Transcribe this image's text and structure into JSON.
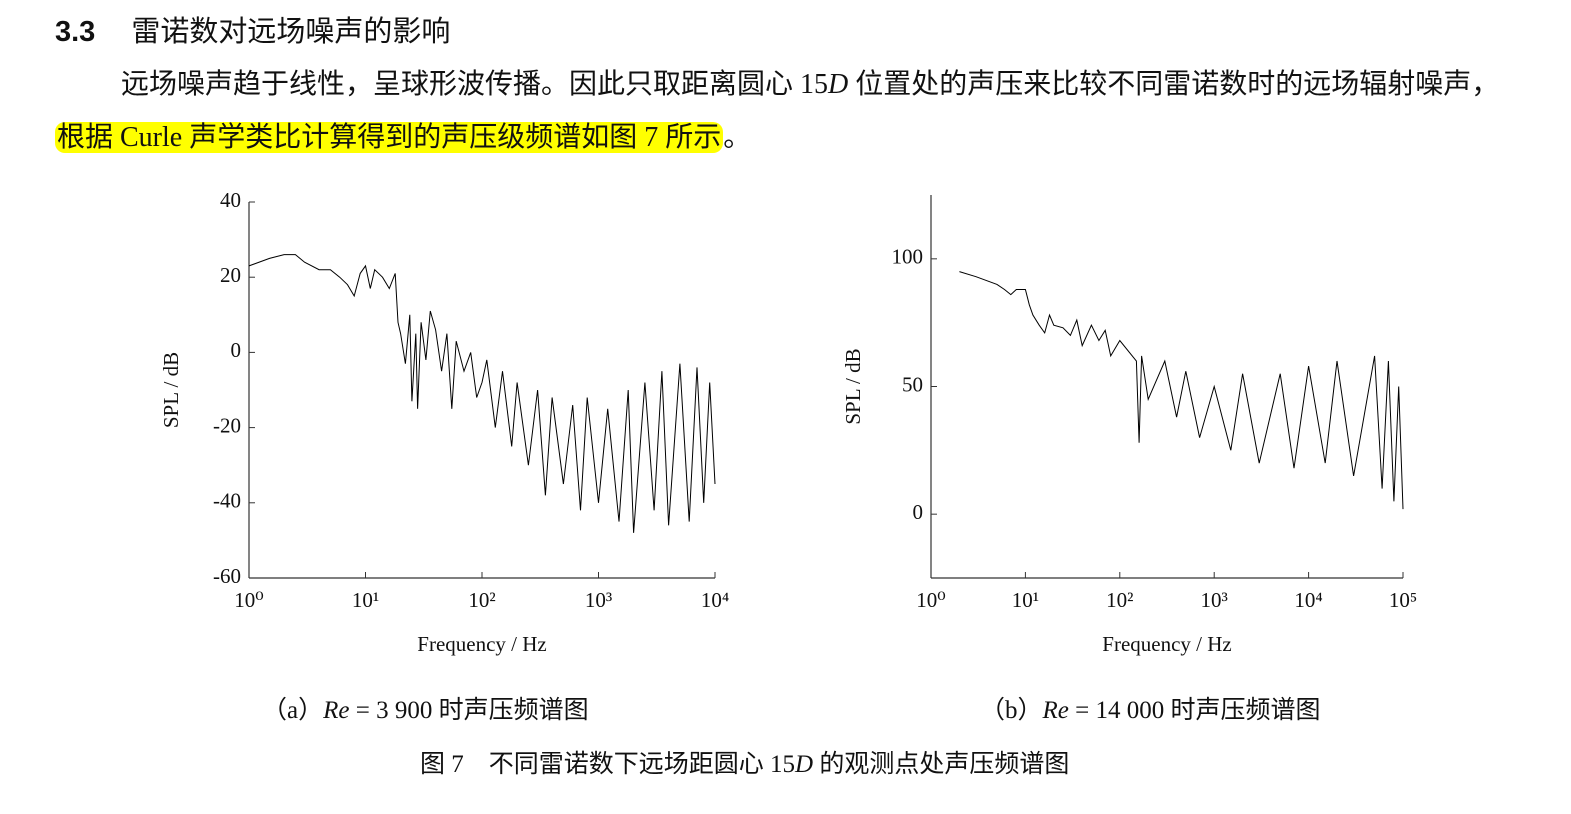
{
  "section": {
    "number": "3.3",
    "title": "雷诺数对远场噪声的影响"
  },
  "paragraph": {
    "before": "远场噪声趋于线性，呈球形波传播。因此只取距离圆心 15",
    "italic": "D",
    "middle": " 位置处的声压来比较不同雷诺数时的远场辐射噪声，",
    "highlight": "根据 Curle 声学类比计算得到的声压级频谱如图 7 所示",
    "after": "。"
  },
  "subcaptions": [
    {
      "label": "（a）",
      "italic": "Re",
      "text": " = 3 900 时声压频谱图"
    },
    {
      "label": "（b）",
      "italic": "Re",
      "text": " = 14 000 时声压频谱图"
    }
  ],
  "caption": {
    "before": "图 7　不同雷诺数下远场距圆心 15",
    "italic": "D",
    "after": " 的观测点处声压频谱图"
  },
  "chart_data": [
    {
      "type": "line",
      "x_label": "Frequency / Hz",
      "y_label": "SPL / dB",
      "log_x": true,
      "color": "#000000",
      "xlim": [
        1,
        10000
      ],
      "xticks": [
        {
          "value": 1,
          "label": "10⁰"
        },
        {
          "value": 10,
          "label": "10¹"
        },
        {
          "value": 100,
          "label": "10²"
        },
        {
          "value": 1000,
          "label": "10³"
        },
        {
          "value": 10000,
          "label": "10⁴"
        }
      ],
      "ylim": [
        -60,
        40
      ],
      "yticks": [
        -60,
        -40,
        -20,
        0,
        20,
        40
      ],
      "x": [
        1,
        1.5,
        2,
        2.5,
        3,
        4,
        5,
        6,
        7,
        8,
        9,
        10,
        11,
        12,
        14,
        16,
        18,
        19,
        20,
        22,
        24,
        25,
        27,
        28,
        30,
        33,
        36,
        40,
        45,
        50,
        55,
        60,
        70,
        80,
        90,
        100,
        110,
        130,
        150,
        180,
        200,
        250,
        300,
        350,
        400,
        500,
        600,
        700,
        800,
        1000,
        1200,
        1500,
        1800,
        2000,
        2500,
        3000,
        3500,
        4000,
        5000,
        6000,
        7000,
        8000,
        9000,
        10000
      ],
      "values": [
        23,
        25,
        26,
        26,
        24,
        22,
        22,
        20,
        18,
        15,
        21,
        23,
        17,
        22,
        20,
        17,
        21,
        8,
        5,
        -3,
        10,
        -13,
        5,
        -15,
        8,
        -2,
        11,
        6,
        -5,
        5,
        -15,
        3,
        -5,
        0,
        -12,
        -8,
        -2,
        -20,
        -5,
        -25,
        -8,
        -30,
        -10,
        -38,
        -12,
        -35,
        -14,
        -42,
        -12,
        -40,
        -15,
        -45,
        -10,
        -48,
        -8,
        -42,
        -5,
        -46,
        -3,
        -45,
        -4,
        -40,
        -8,
        -35
      ]
    },
    {
      "type": "line",
      "x_label": "Frequency / Hz",
      "y_label": "SPL / dB",
      "log_x": true,
      "color": "#000000",
      "xlim": [
        1,
        100000
      ],
      "xticks": [
        {
          "value": 1,
          "label": "10⁰"
        },
        {
          "value": 10,
          "label": "10¹"
        },
        {
          "value": 100,
          "label": "10²"
        },
        {
          "value": 1000,
          "label": "10³"
        },
        {
          "value": 10000,
          "label": "10⁴"
        },
        {
          "value": 100000,
          "label": "10⁵"
        }
      ],
      "ylim": [
        -25,
        125
      ],
      "yticks": [
        0,
        50,
        100
      ],
      "x": [
        2,
        3,
        5,
        6,
        7,
        8,
        10,
        11,
        12,
        14,
        16,
        18,
        20,
        25,
        30,
        35,
        40,
        50,
        60,
        70,
        80,
        100,
        150,
        160,
        170,
        200,
        300,
        400,
        500,
        700,
        1000,
        1500,
        2000,
        3000,
        5000,
        7000,
        10000,
        15000,
        20000,
        30000,
        50000,
        60000,
        70000,
        80000,
        90000,
        100000
      ],
      "values": [
        95,
        93,
        90,
        88,
        86,
        88,
        88,
        82,
        78,
        74,
        71,
        78,
        74,
        73,
        70,
        76,
        66,
        74,
        68,
        72,
        62,
        68,
        60,
        28,
        62,
        45,
        60,
        38,
        56,
        30,
        50,
        25,
        55,
        20,
        55,
        18,
        58,
        20,
        60,
        15,
        62,
        10,
        60,
        5,
        50,
        2
      ]
    }
  ]
}
